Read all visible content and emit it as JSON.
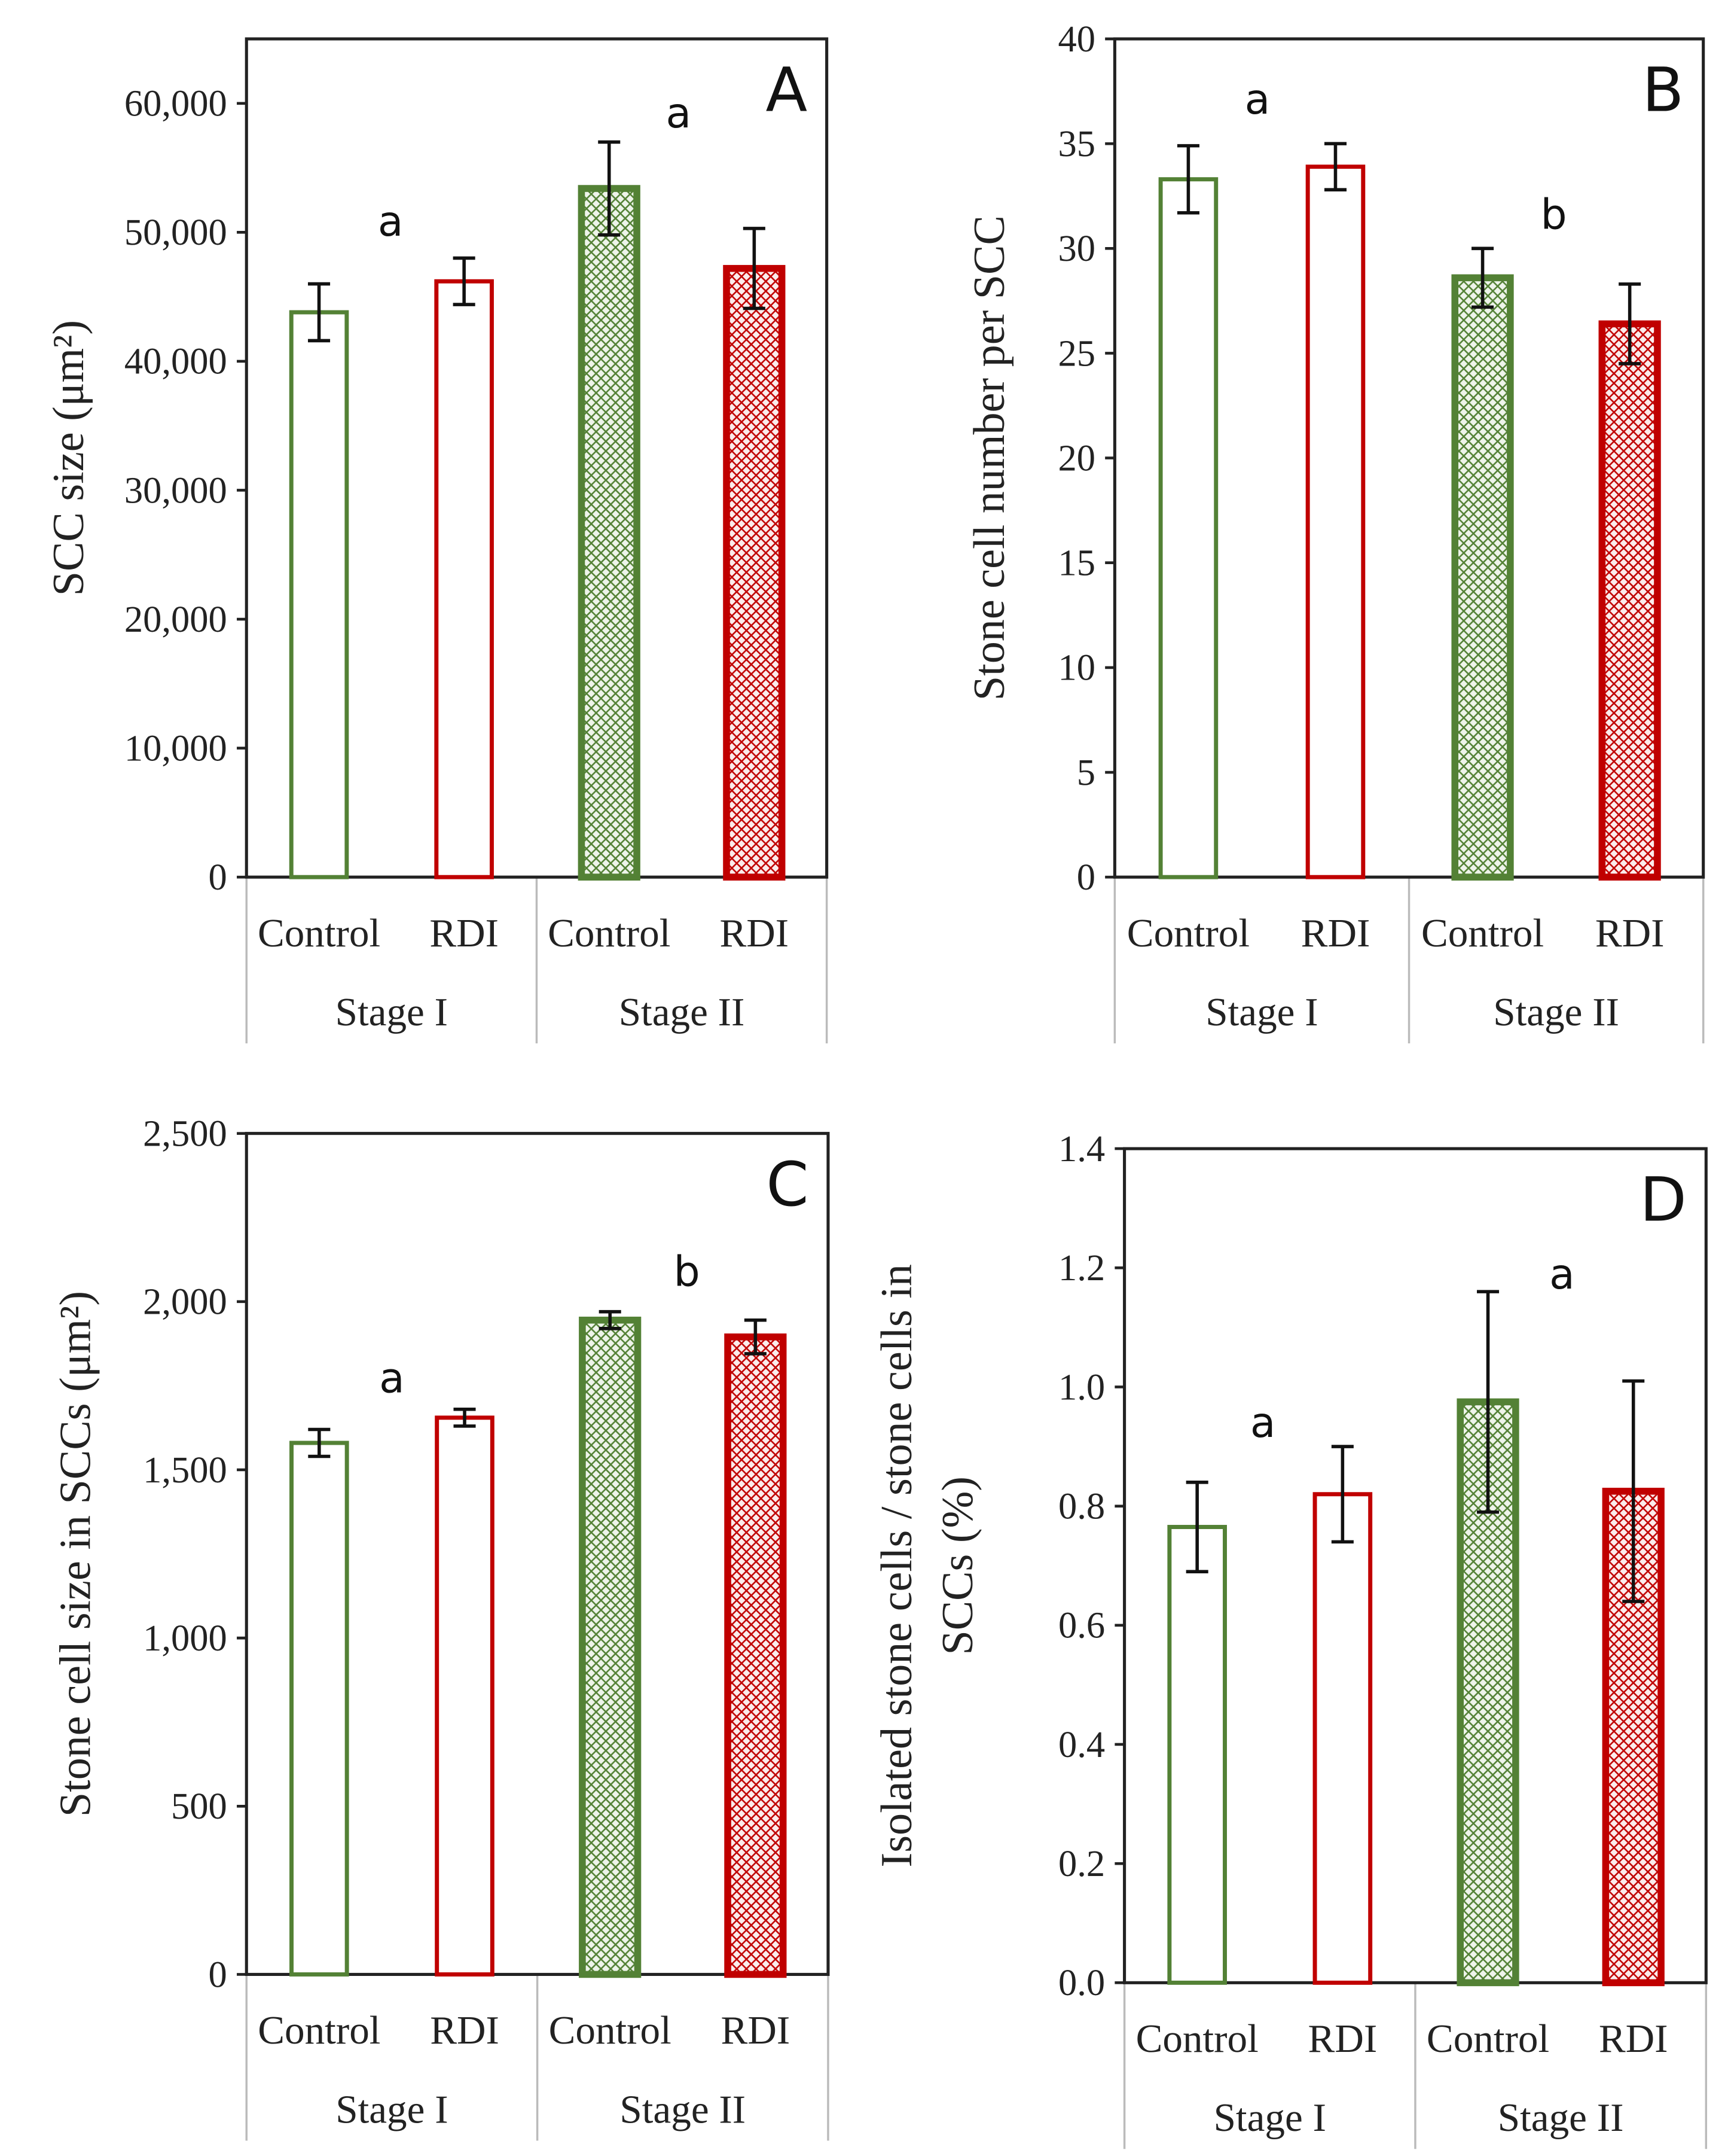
{
  "colors": {
    "control": "#538135",
    "rdi": "#C00000",
    "error": "#111111"
  },
  "chart_data": [
    {
      "type": "bar",
      "panel": "A",
      "ylabel": "SCC size (μm²)",
      "ylim": [
        0,
        65000
      ],
      "ytick_step": 10000,
      "ytick_max": 60000,
      "tick_format": "thousands",
      "categories": [
        "Control",
        "RDI",
        "Control",
        "RDI"
      ],
      "groups": [
        "Stage I",
        "Stage II"
      ],
      "values": [
        43800,
        46200,
        53400,
        47200
      ],
      "errors": [
        2200,
        1800,
        3600,
        3100
      ],
      "annotations": [
        "a",
        "a"
      ]
    },
    {
      "type": "bar",
      "panel": "B",
      "ylabel": "Stone cell number per SCC",
      "ylim": [
        0,
        40
      ],
      "ytick_step": 5,
      "ytick_max": 40,
      "tick_format": "int",
      "categories": [
        "Control",
        "RDI",
        "Control",
        "RDI"
      ],
      "groups": [
        "Stage I",
        "Stage II"
      ],
      "values": [
        33.3,
        33.9,
        28.6,
        26.4
      ],
      "errors": [
        1.6,
        1.1,
        1.4,
        1.9
      ],
      "annotations": [
        "a",
        "b"
      ]
    },
    {
      "type": "bar",
      "panel": "C",
      "ylabel": "Stone cell size in SCCs (μm²)",
      "ylim": [
        0,
        2500
      ],
      "ytick_step": 500,
      "ytick_max": 2500,
      "tick_format": "thousands",
      "categories": [
        "Control",
        "RDI",
        "Control",
        "RDI"
      ],
      "groups": [
        "Stage I",
        "Stage II"
      ],
      "values": [
        1580,
        1655,
        1945,
        1895
      ],
      "errors": [
        40,
        25,
        25,
        50
      ],
      "annotations": [
        "a",
        "b"
      ]
    },
    {
      "type": "bar",
      "panel": "D",
      "ylabel": [
        "Isolated stone cells / stone cells in",
        "SCCs (%)"
      ],
      "ylim": [
        0,
        1.4
      ],
      "ytick_step": 0.2,
      "ytick_max": 1.4,
      "tick_format": "1dp",
      "categories": [
        "Control",
        "RDI",
        "Control",
        "RDI"
      ],
      "groups": [
        "Stage I",
        "Stage II"
      ],
      "values": [
        0.765,
        0.82,
        0.975,
        0.825
      ],
      "errors": [
        0.075,
        0.08,
        0.185,
        0.185
      ],
      "annotations": [
        "a",
        "a"
      ]
    }
  ]
}
